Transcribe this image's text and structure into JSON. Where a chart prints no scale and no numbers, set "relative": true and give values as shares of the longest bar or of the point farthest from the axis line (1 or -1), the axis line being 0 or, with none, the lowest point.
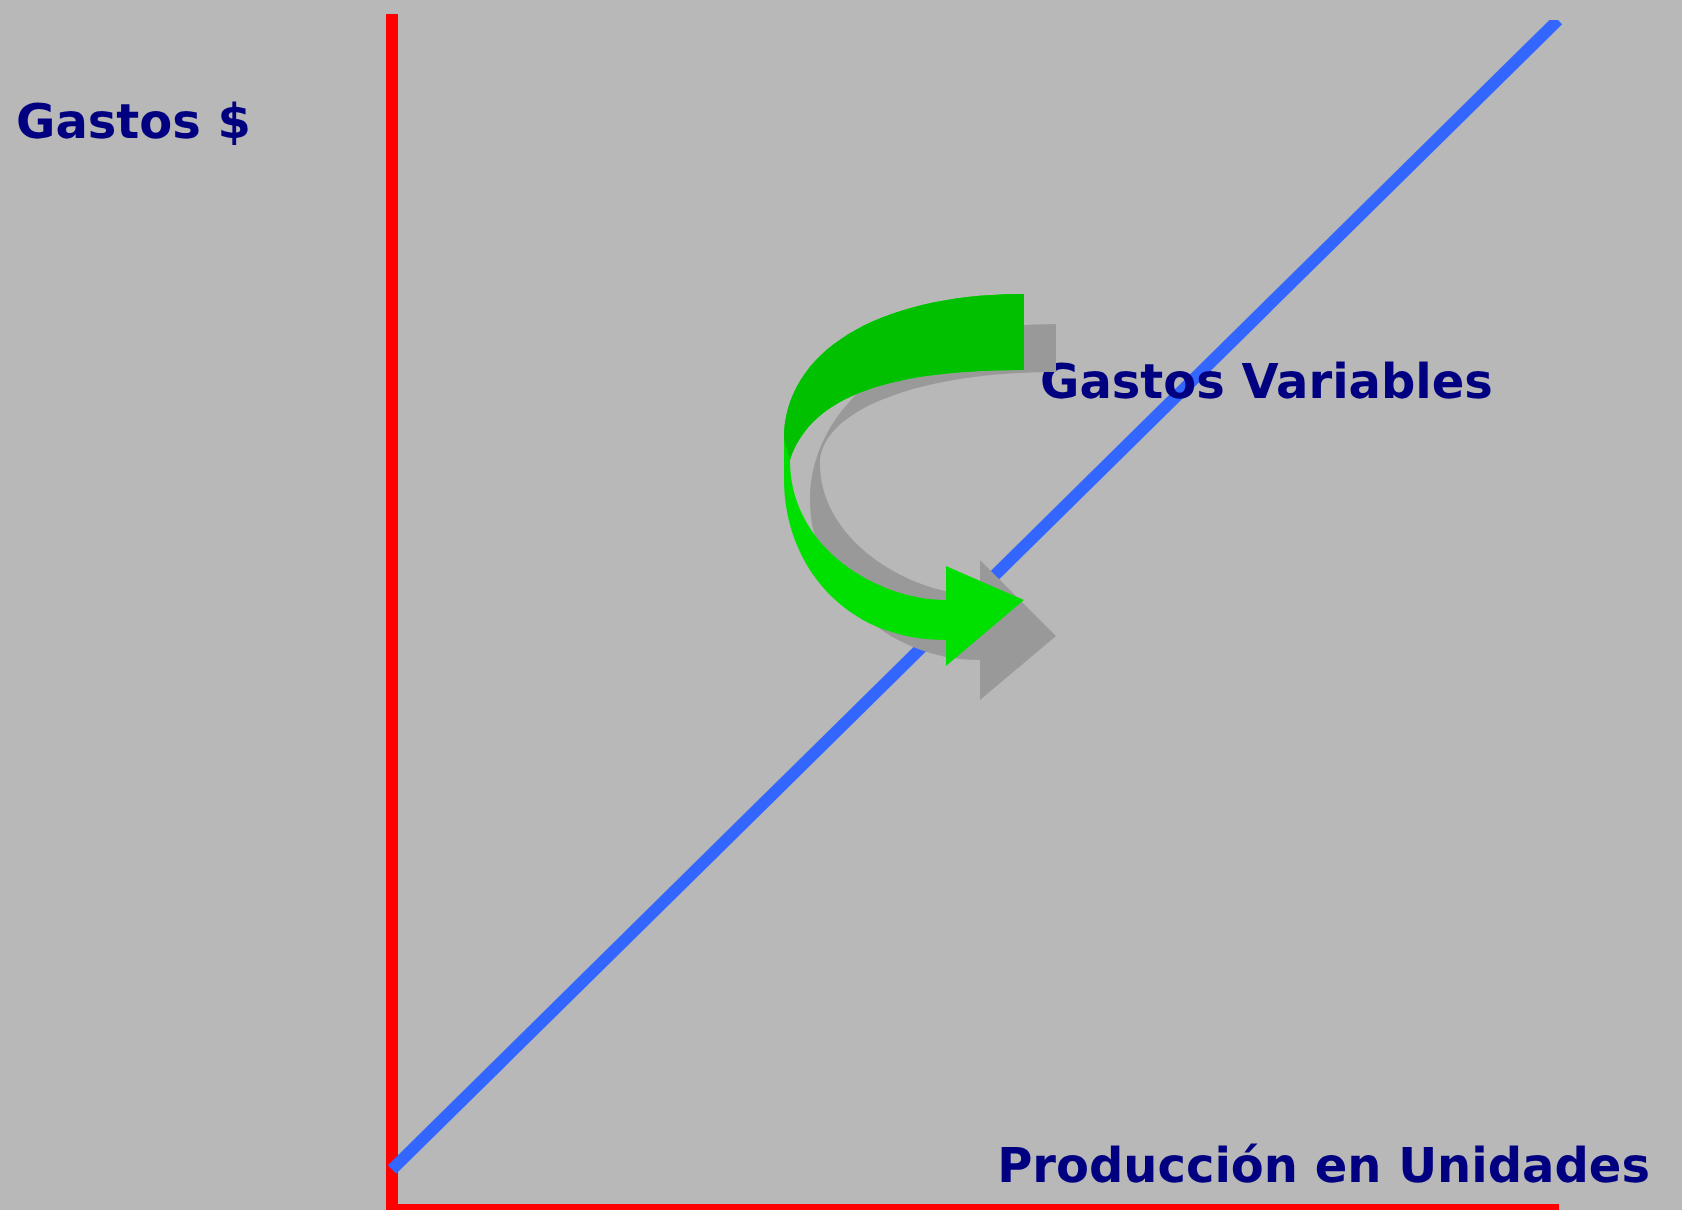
{
  "chart_data": {
    "type": "line",
    "relative": true,
    "xlabel": "Producción en Unidades",
    "ylabel": "Gastos $",
    "annotations": [
      "Gastos Variables"
    ],
    "categories": [
      null,
      null
    ],
    "series": [
      {
        "color": "#3366ff",
        "values": [
          0.034,
          1
        ]
      }
    ],
    "legend": false,
    "grid": false,
    "marker": "none"
  }
}
